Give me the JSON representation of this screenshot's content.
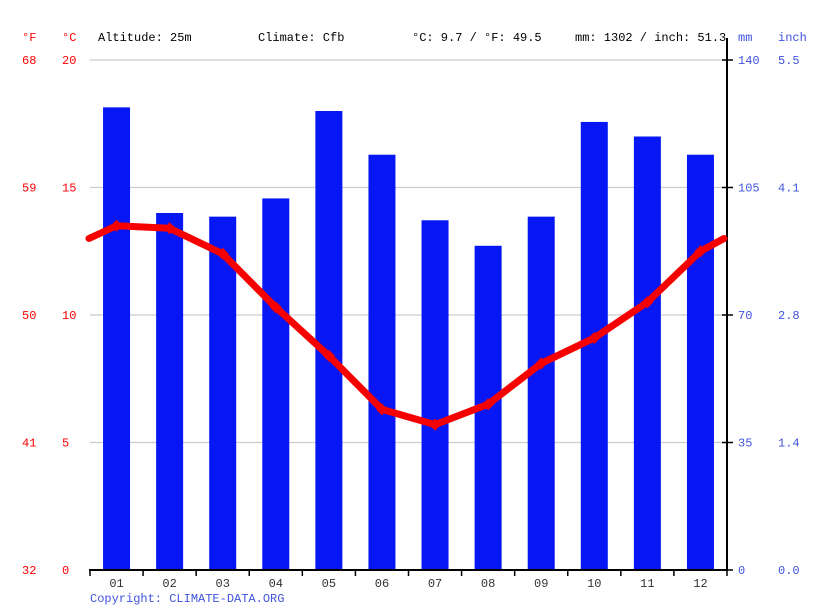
{
  "header": {
    "f_label": "°F",
    "c_label": "°C",
    "altitude": "Altitude: 25m",
    "climate": "Climate: Cfb",
    "temperature_summary": "°C: 9.7 / °F: 49.5",
    "precipitation_summary": "mm: 1302 / inch: 51.3",
    "mm_label": "mm",
    "inch_label": "inch"
  },
  "axes": {
    "left_f_ticks": [
      "68",
      "59",
      "50",
      "41",
      "32"
    ],
    "left_c_ticks": [
      "20",
      "15",
      "10",
      "5",
      "0"
    ],
    "right_mm_ticks": [
      "140",
      "105",
      "70",
      "35",
      "0"
    ],
    "right_inch_ticks": [
      "5.5",
      "4.1",
      "2.8",
      "1.4",
      "0.0"
    ]
  },
  "chart_data": {
    "type": "composite",
    "categories": [
      "01",
      "02",
      "03",
      "04",
      "05",
      "06",
      "07",
      "08",
      "09",
      "10",
      "11",
      "12"
    ],
    "series": [
      {
        "name": "precipitation",
        "type": "bar",
        "unit": "mm",
        "values": [
          127,
          98,
          97,
          102,
          126,
          114,
          96,
          89,
          97,
          123,
          119,
          114
        ]
      },
      {
        "name": "temperature",
        "type": "line",
        "unit": "°C",
        "values": [
          13.5,
          13.4,
          12.4,
          10.3,
          8.4,
          6.3,
          5.7,
          6.5,
          8.1,
          9.1,
          10.5,
          12.5
        ],
        "edge_start": 13.0,
        "edge_end": 13.0
      }
    ],
    "ylim_c": [
      0,
      20
    ],
    "ylim_mm": [
      0,
      140
    ],
    "grid": true,
    "annual_mean_c": 9.7,
    "annual_precip_mm": 1302
  },
  "footer": {
    "copyright_prefix": "Copyright: ",
    "copyright_link": "CLIMATE-DATA.ORG"
  },
  "colors": {
    "bar_blue": "#0617f3",
    "line_red": "#f70000",
    "red_text": "#ff0000",
    "blue_text": "#4053dd",
    "month_text": "#333333",
    "gridline": "#cccccc",
    "axis_black": "#000000"
  }
}
